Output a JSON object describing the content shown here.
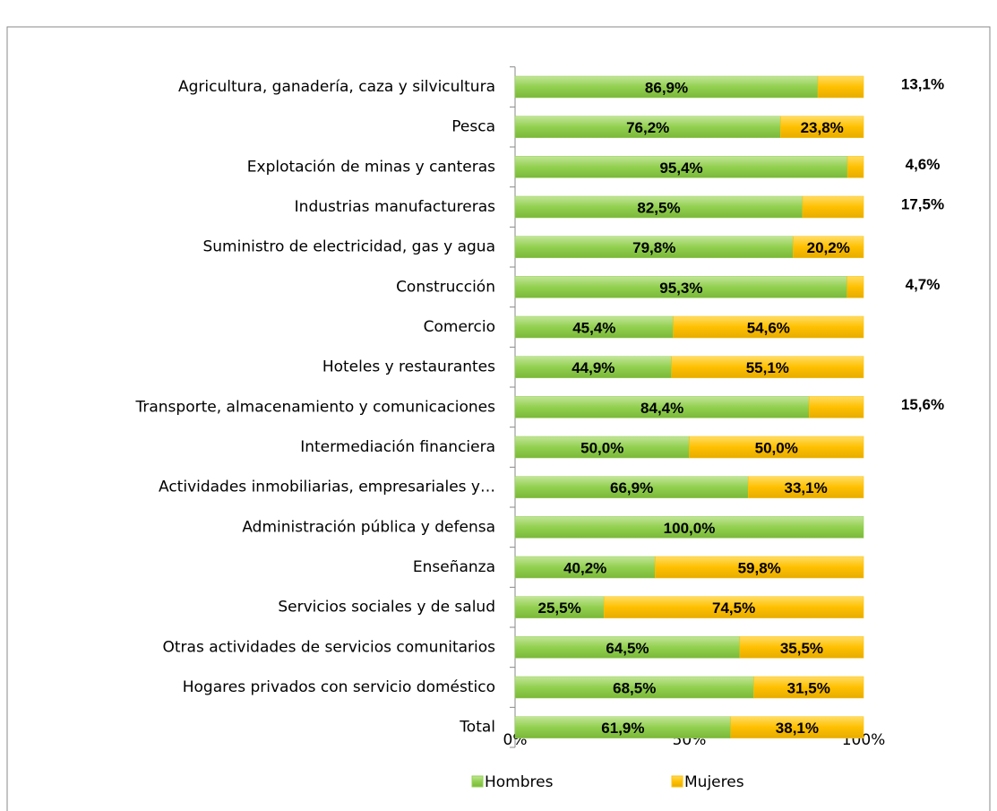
{
  "chart_data": {
    "type": "stacked_barh",
    "categories": [
      "Agricultura, ganadería, caza y silvicultura",
      "Pesca",
      "Explotación de minas y canteras",
      "Industrias manufactureras",
      "Suministro de electricidad, gas y agua",
      "Construcción",
      "Comercio",
      "Hoteles y restaurantes",
      "Transporte, almacenamiento y comunicaciones",
      "Intermediación financiera",
      "Actividades inmobiliarias, empresariales y…",
      "Administración pública y defensa",
      "Enseñanza",
      "Servicios sociales y de salud",
      "Otras actividades de servicios comunitarios",
      "Hogares privados con servicio doméstico",
      "Total"
    ],
    "series": [
      {
        "name": "Hombres",
        "color": "#92d050",
        "values": [
          86.9,
          76.2,
          95.4,
          82.5,
          79.8,
          95.3,
          45.4,
          44.9,
          84.4,
          50.0,
          66.9,
          100.0,
          40.2,
          25.5,
          64.5,
          68.5,
          61.9
        ],
        "value_labels": [
          "86,9%",
          "76,2%",
          "95,4%",
          "82,5%",
          "79,8%",
          "95,3%",
          "45,4%",
          "44,9%",
          "84,4%",
          "50,0%",
          "66,9%",
          "100,0%",
          "40,2%",
          "25,5%",
          "64,5%",
          "68,5%",
          "61,9%"
        ]
      },
      {
        "name": "Mujeres",
        "color": "#ffc000",
        "values": [
          13.1,
          23.8,
          4.6,
          17.5,
          20.2,
          4.7,
          54.6,
          55.1,
          15.6,
          50.0,
          33.1,
          0,
          59.8,
          74.5,
          35.5,
          31.5,
          38.1
        ],
        "value_labels": [
          "13,1%",
          "23,8%",
          "4,6%",
          "17,5%",
          "20,2%",
          "4,7%",
          "54,6%",
          "55,1%",
          "15,6%",
          "50,0%",
          "33,1%",
          null,
          "59,8%",
          "74,5%",
          "35,5%",
          "31,5%",
          "38,1%"
        ]
      }
    ],
    "xlim": [
      0,
      100
    ],
    "xticks": [
      {
        "value": 0,
        "label": "0%"
      },
      {
        "value": 50,
        "label": "50%"
      },
      {
        "value": 100,
        "label": "100%"
      }
    ],
    "legend": "bottom"
  }
}
